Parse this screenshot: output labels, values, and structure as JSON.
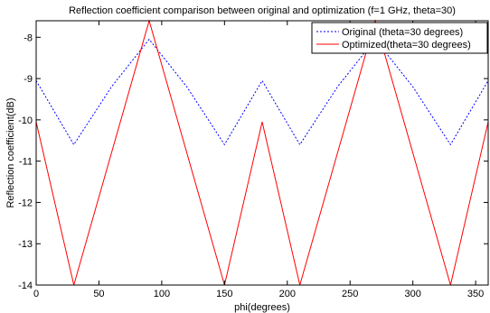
{
  "chart_data": {
    "type": "line",
    "title": "Reflection coefficient comparison between original and optimization (f=1 GHz, theta=30)",
    "xlabel": "phi(degrees)",
    "ylabel": "Reflection coefficient(dB)",
    "xlim": [
      0,
      360
    ],
    "ylim": [
      -14,
      -7.6
    ],
    "xticks": [
      0,
      50,
      100,
      150,
      200,
      250,
      300,
      350
    ],
    "yticks": [
      -14,
      -13,
      -12,
      -11,
      -10,
      -9,
      -8
    ],
    "grid": false,
    "legend_position": "top-right",
    "series": [
      {
        "name": "Original (theta=30 degrees)",
        "color": "#0000ff",
        "line_style": "dotted",
        "x": [
          0,
          30,
          60,
          90,
          120,
          150,
          180,
          210,
          240,
          270,
          300,
          330,
          360
        ],
        "y": [
          -9.05,
          -10.6,
          -9.2,
          -8.05,
          -9.2,
          -10.6,
          -9.05,
          -10.6,
          -9.2,
          -8.05,
          -9.2,
          -10.6,
          -9.05
        ]
      },
      {
        "name": "Optimized(theta=30 degrees)",
        "color": "#ff0000",
        "line_style": "solid",
        "x": [
          0,
          30,
          90,
          150,
          180,
          210,
          270,
          330,
          360
        ],
        "y": [
          -10.05,
          -14.0,
          -7.6,
          -14.0,
          -10.05,
          -14.0,
          -7.6,
          -14.0,
          -10.05
        ]
      }
    ]
  }
}
